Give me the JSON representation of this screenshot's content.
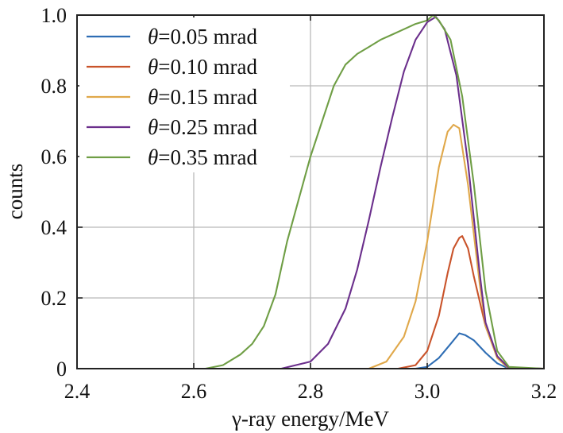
{
  "chart_data": {
    "type": "line",
    "xlabel": "γ-ray energy/MeV",
    "ylabel": "counts",
    "xlim": [
      2.4,
      3.2
    ],
    "ylim": [
      0,
      1.0
    ],
    "xticks": [
      "2.4",
      "2.6",
      "2.8",
      "3.0",
      "3.2"
    ],
    "yticks": [
      "0",
      "0.2",
      "0.4",
      "0.6",
      "0.8",
      "1.0"
    ],
    "grid": true,
    "legend_position": "top-left",
    "series": [
      {
        "name": "θ=0.05 mrad",
        "legend_symbol": "θ",
        "legend_rest": "=0.05 mrad",
        "color": "#2e6db4",
        "x": [
          2.4,
          2.98,
          3.0,
          3.02,
          3.04,
          3.055,
          3.065,
          3.08,
          3.1,
          3.12,
          3.14,
          3.2
        ],
        "y": [
          0,
          0,
          0.005,
          0.03,
          0.07,
          0.1,
          0.095,
          0.08,
          0.045,
          0.015,
          0,
          0
        ]
      },
      {
        "name": "θ=0.10 mrad",
        "legend_symbol": "θ",
        "legend_rest": "=0.10 mrad",
        "color": "#c9532a",
        "x": [
          2.4,
          2.95,
          2.98,
          3.0,
          3.02,
          3.035,
          3.045,
          3.055,
          3.06,
          3.07,
          3.08,
          3.1,
          3.12,
          3.14,
          3.2
        ],
        "y": [
          0,
          0,
          0.01,
          0.05,
          0.15,
          0.27,
          0.34,
          0.37,
          0.375,
          0.34,
          0.26,
          0.12,
          0.035,
          0.002,
          0
        ]
      },
      {
        "name": "θ=0.15 mrad",
        "legend_symbol": "θ",
        "legend_rest": "=0.15 mrad",
        "color": "#e0a84a",
        "x": [
          2.4,
          2.9,
          2.93,
          2.96,
          2.98,
          3.0,
          3.02,
          3.035,
          3.045,
          3.055,
          3.07,
          3.09,
          3.1,
          3.12,
          3.14,
          3.2
        ],
        "y": [
          0,
          0,
          0.02,
          0.09,
          0.19,
          0.36,
          0.57,
          0.67,
          0.69,
          0.68,
          0.52,
          0.24,
          0.12,
          0.03,
          0,
          0
        ]
      },
      {
        "name": "θ=0.25 mrad",
        "legend_symbol": "θ",
        "legend_rest": "=0.25 mrad",
        "color": "#6b2f8c",
        "x": [
          2.4,
          2.75,
          2.8,
          2.83,
          2.86,
          2.88,
          2.9,
          2.92,
          2.94,
          2.96,
          2.98,
          3.0,
          3.015,
          3.03,
          3.05,
          3.07,
          3.09,
          3.1,
          3.12,
          3.14,
          3.2
        ],
        "y": [
          0,
          0,
          0.02,
          0.07,
          0.17,
          0.28,
          0.42,
          0.57,
          0.71,
          0.84,
          0.93,
          0.98,
          0.995,
          0.96,
          0.83,
          0.58,
          0.27,
          0.13,
          0.035,
          0.002,
          0
        ]
      },
      {
        "name": "θ=0.35 mrad",
        "legend_symbol": "θ",
        "legend_rest": "=0.35 mrad",
        "color": "#6f9e45",
        "x": [
          2.4,
          2.62,
          2.65,
          2.68,
          2.7,
          2.72,
          2.74,
          2.76,
          2.78,
          2.8,
          2.82,
          2.84,
          2.86,
          2.88,
          2.9,
          2.92,
          2.94,
          2.96,
          2.98,
          3.0,
          3.01,
          3.02,
          3.04,
          3.06,
          3.08,
          3.1,
          3.12,
          3.14,
          3.2
        ],
        "y": [
          0,
          0,
          0.01,
          0.04,
          0.07,
          0.12,
          0.21,
          0.36,
          0.48,
          0.6,
          0.7,
          0.8,
          0.86,
          0.89,
          0.91,
          0.93,
          0.945,
          0.96,
          0.975,
          0.985,
          1.0,
          0.985,
          0.93,
          0.77,
          0.52,
          0.22,
          0.05,
          0.005,
          0
        ]
      }
    ]
  }
}
